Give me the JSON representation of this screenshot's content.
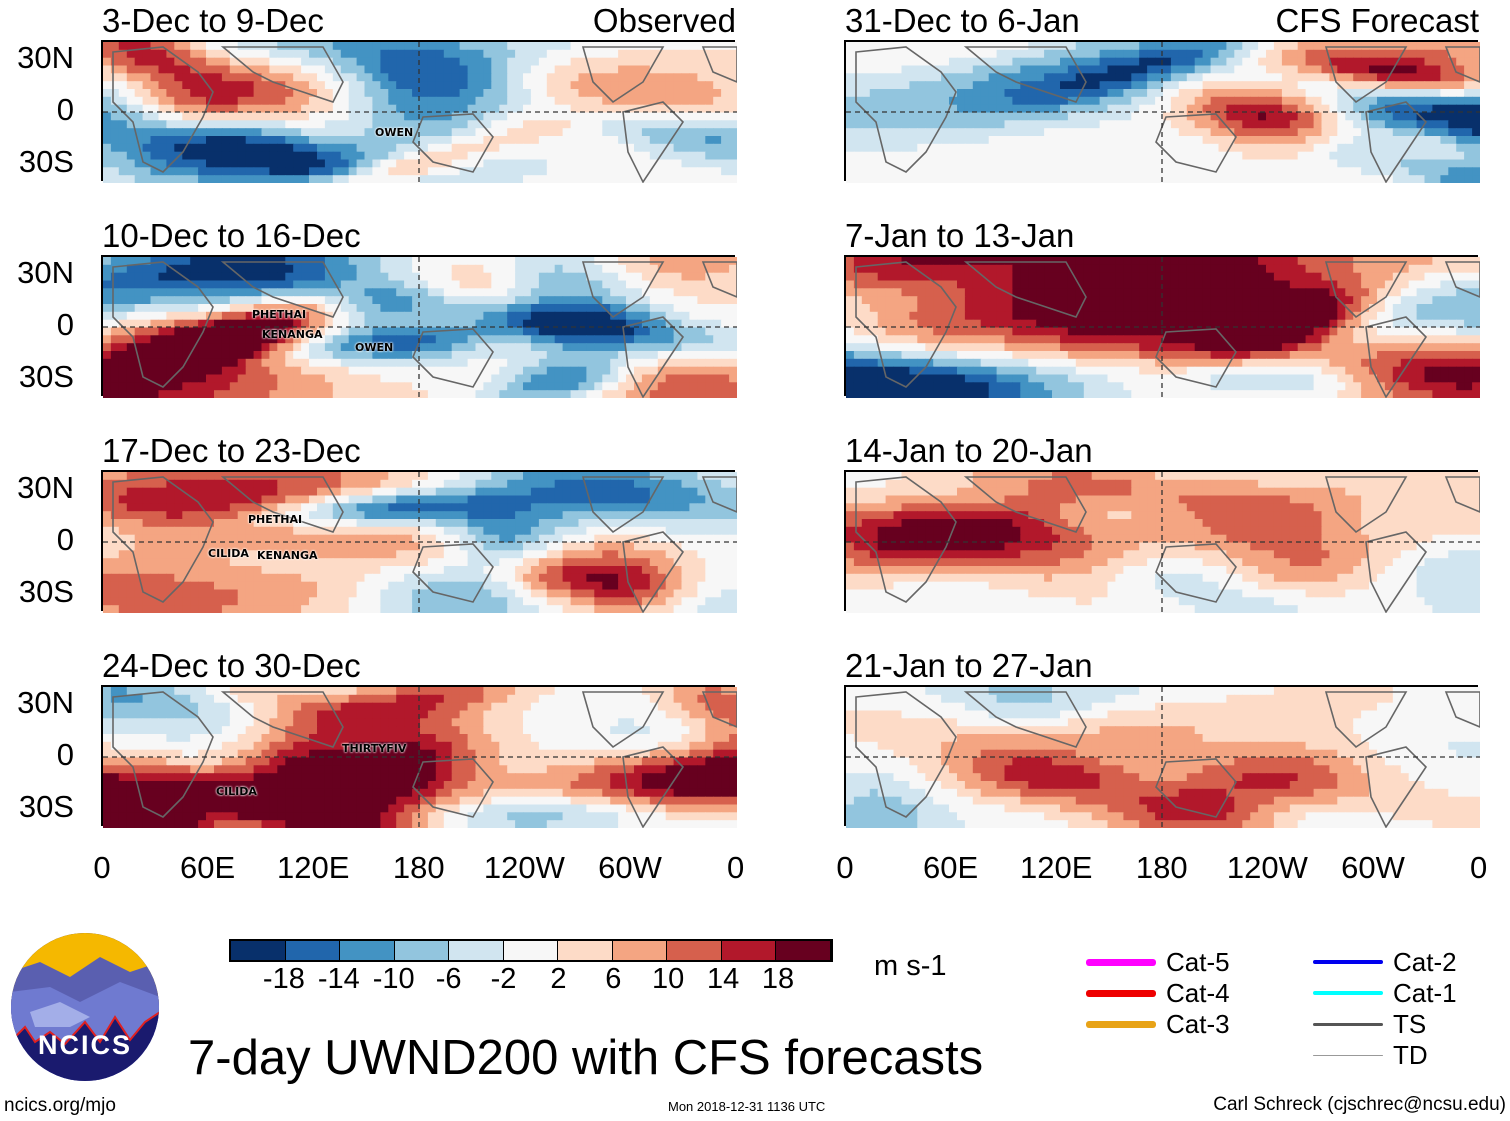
{
  "panels": [
    {
      "title": "3-Dec to 9-Dec",
      "subtitle": "Observed",
      "storms": [
        "OWEN"
      ]
    },
    {
      "title": "10-Dec to 16-Dec",
      "storms": [
        "PHETHAI",
        "KENANGA",
        "OWEN"
      ]
    },
    {
      "title": "17-Dec to 23-Dec",
      "storms": [
        "PHETHAI",
        "CILIDA",
        "KENANGA"
      ]
    },
    {
      "title": "24-Dec to 30-Dec",
      "storms": [
        "THIRTYFIV",
        "CILIDA"
      ]
    },
    {
      "title": "31-Dec to 6-Jan",
      "subtitle": "CFS Forecast",
      "storms": []
    },
    {
      "title": "7-Jan to 13-Jan",
      "storms": []
    },
    {
      "title": "14-Jan to 20-Jan",
      "storms": []
    },
    {
      "title": "21-Jan to 27-Jan",
      "storms": []
    }
  ],
  "lat_labels": [
    "30N",
    "0",
    "30S"
  ],
  "lon_labels": [
    "0",
    "60E",
    "120E",
    "180",
    "120W",
    "60W",
    "0"
  ],
  "colorbar": {
    "colors": [
      "#08306b",
      "#2166ac",
      "#4393c3",
      "#92c5de",
      "#d1e5f0",
      "#f7f7f7",
      "#fddbc7",
      "#f4a582",
      "#d6604d",
      "#b2182b",
      "#67001f"
    ],
    "labels": [
      "-18",
      "-14",
      "-10",
      "-6",
      "-2",
      "2",
      "6",
      "10",
      "14",
      "18"
    ],
    "units": "m s-1"
  },
  "legend": [
    {
      "label": "Cat-5",
      "color": "#ff00ff"
    },
    {
      "label": "Cat-4",
      "color": "#ee0000"
    },
    {
      "label": "Cat-3",
      "color": "#e8a317"
    },
    {
      "label": "Cat-2",
      "color": "#0000ee"
    },
    {
      "label": "Cat-1",
      "color": "#00ffff"
    },
    {
      "label": "TS",
      "color": "#555555"
    },
    {
      "label": "TD",
      "color": "#999999"
    }
  ],
  "logo": {
    "text": "NCICS"
  },
  "title": "7-day UWND200 with CFS forecasts",
  "footer": {
    "left": "ncics.org/mjo",
    "center": "Mon 2018-12-31 1136 UTC",
    "right": "Carl Schreck (cjschrec@ncsu.edu)"
  }
}
